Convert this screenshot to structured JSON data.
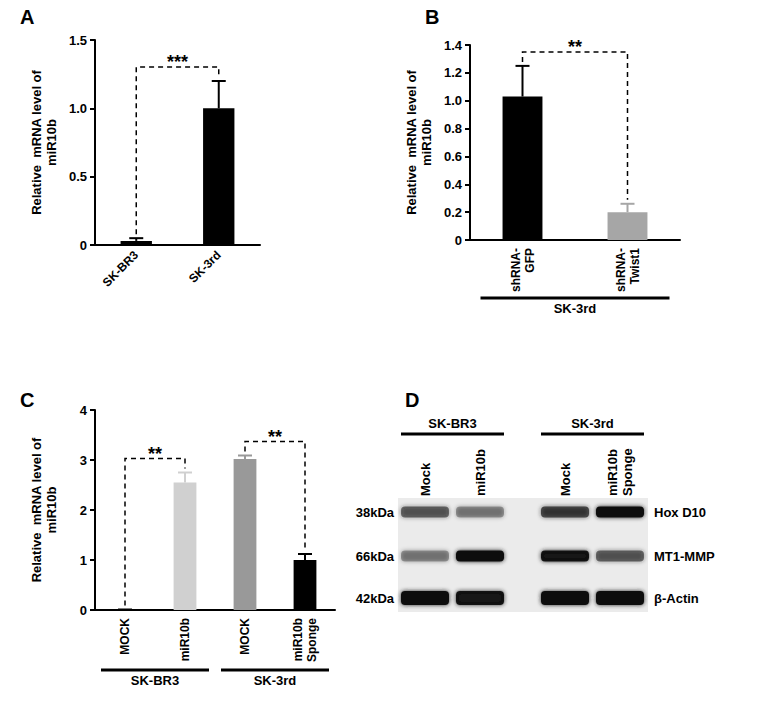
{
  "chart_data": [
    {
      "type": "bar",
      "title": "A",
      "ylabel": "Relative  mRNA level of\nmiR10b",
      "categories": [
        "SK-BR3",
        "SK-3rd"
      ],
      "values": [
        0.03,
        1.0
      ],
      "errors": [
        0.02,
        0.2
      ],
      "colors": [
        "#000000",
        "#000000"
      ],
      "ylim": [
        0,
        1.5
      ],
      "yticks": [
        0,
        0.5,
        {
          "value": 1,
          "label": "1.0"
        },
        1.5
      ],
      "grid": false,
      "annotations": [
        {
          "text": "***",
          "from": 0,
          "to": 1
        }
      ]
    },
    {
      "type": "bar",
      "title": "B",
      "ylabel": "Relative  mRNA level of\nmiR10b",
      "categories": [
        "shRNA-\nGFP",
        "shRNA-\nTwist1"
      ],
      "values": [
        1.03,
        0.2
      ],
      "errors": [
        0.22,
        0.06
      ],
      "colors": [
        "#000000",
        "#a6a6a6"
      ],
      "ylim": [
        0,
        1.4
      ],
      "yticks": [
        0,
        0.2,
        0.4,
        0.6,
        0.8,
        {
          "value": 1,
          "label": "1.0"
        },
        1.2,
        1.4
      ],
      "grid": false,
      "annotations": [
        {
          "text": "**",
          "from": 0,
          "to": 1
        }
      ],
      "groups": [
        {
          "label": "SK-3rd",
          "from": 0,
          "to": 1
        }
      ]
    },
    {
      "type": "bar",
      "title": "C",
      "ylabel": "Relative  mRNA level of\nmiR10b",
      "categories": [
        "MOCK",
        "miR10b",
        "MOCK",
        "miR10b\nSponge"
      ],
      "values": [
        0.01,
        2.55,
        3.02,
        1.0
      ],
      "errors": [
        0,
        0.2,
        0.07,
        0.12
      ],
      "colors": [
        "#000000",
        "#d0d0d0",
        "#999999",
        "#000000"
      ],
      "ylim": [
        0,
        4
      ],
      "yticks": [
        0,
        1,
        2,
        3,
        4
      ],
      "grid": false,
      "annotations": [
        {
          "text": "**",
          "from": 0,
          "to": 1
        },
        {
          "text": "**",
          "from": 2,
          "to": 3
        }
      ],
      "groups": [
        {
          "label": "SK-BR3",
          "from": 0,
          "to": 1
        },
        {
          "label": "SK-3rd",
          "from": 2,
          "to": 3
        }
      ]
    }
  ],
  "blot": {
    "title": "D",
    "groups": [
      {
        "label": "SK-BR3",
        "lanes": [
          "Mock",
          "miR10b"
        ]
      },
      {
        "label": "SK-3rd",
        "lanes": [
          "Mock",
          "miR10b\nSponge"
        ]
      }
    ],
    "rows": [
      {
        "size": "38kDa",
        "protein": "Hox D10",
        "intensity": [
          0.5,
          0.35,
          0.65,
          1.0
        ]
      },
      {
        "size": "66kDa",
        "protein": "MT1-MMP",
        "intensity": [
          0.35,
          1.0,
          0.95,
          0.5
        ]
      },
      {
        "size": "42kDa",
        "protein": "β-Actin",
        "intensity": [
          1.0,
          0.95,
          1.0,
          1.0
        ]
      }
    ]
  }
}
